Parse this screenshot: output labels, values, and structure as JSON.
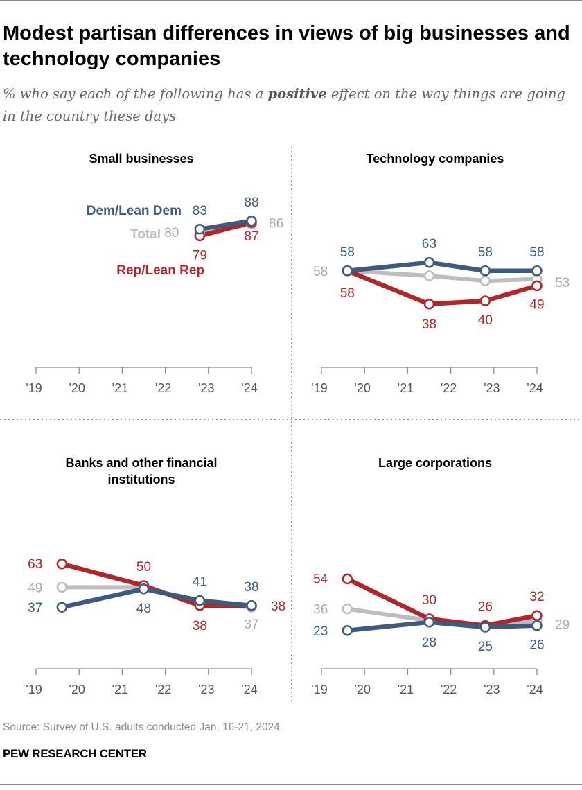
{
  "header": {
    "title": "Modest partisan differences in views of big businesses and technology companies",
    "subtitle_pre": "% who say each of the following has a ",
    "subtitle_bold": "positive",
    "subtitle_post": " effect on the way things are going in the country these days"
  },
  "colors": {
    "dem": "#3d5a7f",
    "rep": "#b2262b",
    "total": "#bdbdbd",
    "axis": "#8c8c8c"
  },
  "chart_data": [
    {
      "type": "line",
      "title": "Small businesses",
      "x": [
        2022.8,
        2024.0
      ],
      "xticks": [
        "'19",
        "'20",
        "'21",
        "'22",
        "'23",
        "'24"
      ],
      "xlim": [
        2019,
        2024
      ],
      "ylim": [
        0,
        100
      ],
      "legend": {
        "placement": "inline-left",
        "entries": [
          "Dem/Lean Dem",
          "Total",
          "Rep/Lean Rep"
        ]
      },
      "series": [
        {
          "name": "Total",
          "key": "total",
          "values": [
            80,
            86
          ]
        },
        {
          "name": "Rep/Lean Rep",
          "key": "rep",
          "values": [
            79,
            87
          ]
        },
        {
          "name": "Dem/Lean Dem",
          "key": "dem",
          "values": [
            83,
            88
          ]
        }
      ]
    },
    {
      "type": "line",
      "title": "Technology companies",
      "x": [
        2019.6,
        2021.5,
        2022.8,
        2024.0
      ],
      "xticks": [
        "'19",
        "'20",
        "'21",
        "'22",
        "'23",
        "'24"
      ],
      "xlim": [
        2019,
        2024
      ],
      "ylim": [
        0,
        100
      ],
      "series": [
        {
          "name": "Total",
          "key": "total",
          "values": [
            58,
            55,
            52,
            53
          ]
        },
        {
          "name": "Rep/Lean Rep",
          "key": "rep",
          "values": [
            58,
            38,
            40,
            49
          ]
        },
        {
          "name": "Dem/Lean Dem",
          "key": "dem",
          "values": [
            58,
            63,
            58,
            58
          ]
        }
      ]
    },
    {
      "type": "line",
      "title": "Banks and other financial institutions",
      "x": [
        2019.6,
        2021.5,
        2022.8,
        2024.0
      ],
      "xticks": [
        "'19",
        "'20",
        "'21",
        "'22",
        "'23",
        "'24"
      ],
      "xlim": [
        2019,
        2024
      ],
      "ylim": [
        0,
        100
      ],
      "series": [
        {
          "name": "Total",
          "key": "total",
          "values": [
            49,
            49,
            39,
            37
          ]
        },
        {
          "name": "Rep/Lean Rep",
          "key": "rep",
          "values": [
            63,
            50,
            38,
            38
          ]
        },
        {
          "name": "Dem/Lean Dem",
          "key": "dem",
          "values": [
            37,
            48,
            41,
            38
          ]
        }
      ]
    },
    {
      "type": "line",
      "title": "Large corporations",
      "x": [
        2019.6,
        2021.5,
        2022.8,
        2024.0
      ],
      "xticks": [
        "'19",
        "'20",
        "'21",
        "'22",
        "'23",
        "'24"
      ],
      "xlim": [
        2019,
        2024
      ],
      "ylim": [
        0,
        100
      ],
      "series": [
        {
          "name": "Total",
          "key": "total",
          "values": [
            36,
            29,
            26,
            29
          ]
        },
        {
          "name": "Rep/Lean Rep",
          "key": "rep",
          "values": [
            54,
            30,
            26,
            32
          ]
        },
        {
          "name": "Dem/Lean Dem",
          "key": "dem",
          "values": [
            23,
            28,
            25,
            26
          ]
        }
      ]
    }
  ],
  "footer": {
    "source": "Source: Survey of U.S. adults conducted Jan. 16-21, 2024.",
    "brand": "PEW RESEARCH CENTER"
  }
}
